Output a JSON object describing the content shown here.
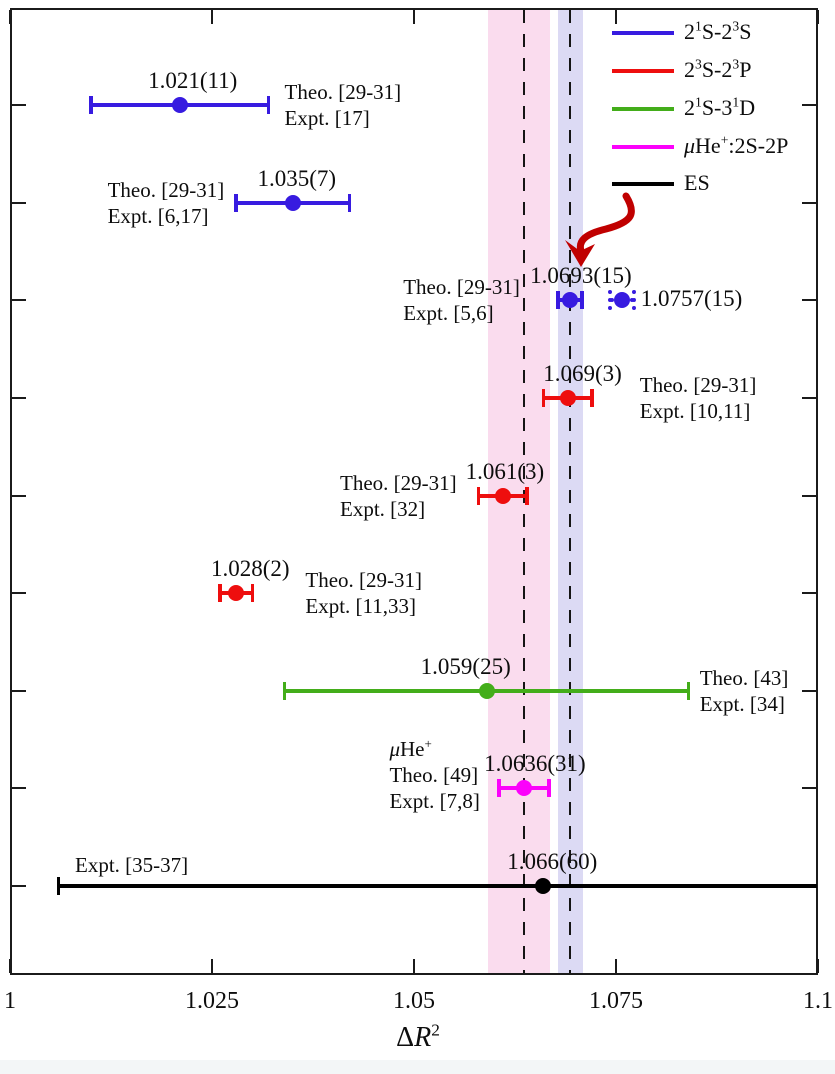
{
  "chart_data": {
    "type": "errorbar",
    "title": "",
    "xlabel": "ΔR^2",
    "xlabel_parts": {
      "prefix": "Δ",
      "variable": "R",
      "superscript": "2"
    },
    "xlim": [
      1.0,
      1.1
    ],
    "xticks": [
      1.0,
      1.025,
      1.05,
      1.075,
      1.1
    ],
    "xtick_labels": [
      "1",
      "1.025",
      "1.05",
      "1.075",
      "1.1"
    ],
    "grid": false,
    "legend_position": "top-right",
    "legend": [
      {
        "label": "2^1S-2^3S",
        "color": "#371be0"
      },
      {
        "label": "2^3S-2^3P",
        "color": "#ee0e0e"
      },
      {
        "label": "2^1S-3^1D",
        "color": "#43ad1a"
      },
      {
        "label": "μHe^+:2S-2P",
        "color": "#fb02fb"
      },
      {
        "label": "ES",
        "color": "#000000"
      }
    ],
    "bands": [
      {
        "name": "muonic-helium-band",
        "x0": 1.0592,
        "x1": 1.0668,
        "color": "#fadcee"
      },
      {
        "name": "helium-2s-band",
        "x0": 1.0678,
        "x1": 1.0709,
        "color": "#dcdaf4"
      }
    ],
    "dashed_lines_x": [
      1.0636,
      1.0693
    ],
    "annotation_arrow": {
      "color": "#c00000",
      "points_to": "1.0693(15)"
    },
    "points": [
      {
        "series": "2^1S-2^3S",
        "color": "#371be0",
        "value": 1.021,
        "error": 0.011,
        "label": "1.021(11)",
        "refs": [
          "Theo. [29-31]",
          "Expt. [17]"
        ],
        "ref_side": "right",
        "label_dx": 13
      },
      {
        "series": "2^1S-2^3S",
        "color": "#371be0",
        "value": 1.035,
        "error": 0.007,
        "label": "1.035(7)",
        "refs": [
          "Theo. [29-31]",
          "Expt. [6,17]"
        ],
        "ref_side": "left",
        "label_dx": 4
      },
      {
        "series": "2^1S-2^3S",
        "color": "#371be0",
        "value": 1.0693,
        "error": 0.0015,
        "label": "1.0693(15)",
        "refs": [
          "Theo. [29-31]",
          "Expt. [5,6]"
        ],
        "ref_side": "left",
        "label_dx": 11,
        "extra_point": {
          "value": 1.0757,
          "error": 0.0015,
          "label": "1.0757(15)",
          "style": "dotted"
        }
      },
      {
        "series": "2^3S-2^3P",
        "color": "#ee0e0e",
        "value": 1.069,
        "error": 0.003,
        "label": "1.069(3)",
        "refs": [
          "Theo. [29-31]",
          "Expt. [10,11]"
        ],
        "ref_side": "right",
        "label_dx": 15
      },
      {
        "series": "2^3S-2^3P",
        "color": "#ee0e0e",
        "value": 1.061,
        "error": 0.003,
        "label": "1.061(3)",
        "refs": [
          "Theo. [29-31]",
          "Expt. [32]"
        ],
        "ref_side": "left",
        "label_dx": 2
      },
      {
        "series": "2^3S-2^3P",
        "color": "#ee0e0e",
        "value": 1.028,
        "error": 0.002,
        "label": "1.028(2)",
        "refs": [
          "Theo. [29-31]",
          "Expt. [11,33]"
        ],
        "ref_side": "right",
        "label_dx": 14
      },
      {
        "series": "2^1S-3^1D",
        "color": "#43ad1a",
        "value": 1.059,
        "error": 0.025,
        "label": "1.059(25)",
        "refs": [
          "Theo. [43]",
          "Expt. [34]"
        ],
        "ref_side": "right",
        "label_dx": -21
      },
      {
        "series": "μHe^+:2S-2P",
        "color": "#fb02fb",
        "value": 1.0636,
        "error": 0.0031,
        "label": "1.0636(31)",
        "refs": [
          "μHe^+",
          "Theo. [49]",
          "Expt. [7,8]"
        ],
        "ref_side": "left",
        "label_dx": 11
      },
      {
        "series": "ES",
        "color": "#000000",
        "value": 1.066,
        "error": 0.06,
        "label": "1.066(60)",
        "refs": [
          "Expt. [35-37]"
        ],
        "ref_side": "above-left",
        "label_dx": 9
      }
    ]
  }
}
